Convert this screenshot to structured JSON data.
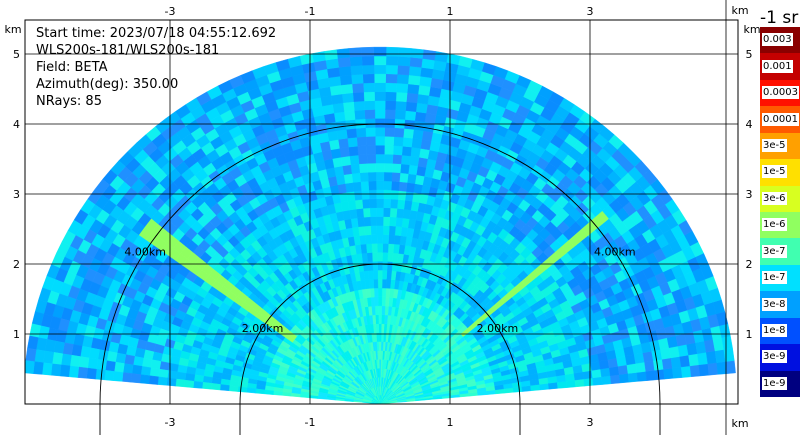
{
  "info": {
    "start_time": "Start time: 2023/07/18 04:55:12.692",
    "instrument": "WLS200s-181/WLS200s-181",
    "field": "Field: BETA",
    "azimuth": "Azimuth(deg): 350.00",
    "nrays": "NRays: 85"
  },
  "colorbar": {
    "title": "-1 sr",
    "labels": [
      "0.003",
      "0.001",
      "0.0003",
      "0.0001",
      "3e-5",
      "1e-5",
      "3e-6",
      "1e-6",
      "3e-7",
      "1e-7",
      "3e-8",
      "1e-8",
      "3e-9",
      "1e-9"
    ],
    "colors": [
      "#8a0000",
      "#c40000",
      "#ff1000",
      "#ff5a00",
      "#ffa000",
      "#ffe000",
      "#d8ff20",
      "#90ff60",
      "#40ffb0",
      "#00e0ff",
      "#00a0ff",
      "#0050ff",
      "#0010e0",
      "#000080"
    ]
  },
  "chart_data": {
    "type": "heatmap",
    "subtype": "range-height-indicator scan",
    "x_unit": "km",
    "y_unit": "km",
    "xlim": [
      -4.3,
      4.3
    ],
    "ylim": [
      0,
      5.8
    ],
    "x_ticks": [
      -3,
      -1,
      1,
      3
    ],
    "x_tick_labels": [
      "-3",
      "-1",
      "1",
      "3"
    ],
    "y_ticks": [
      1,
      2,
      3,
      4,
      5
    ],
    "y_tick_labels": [
      "1",
      "2",
      "3",
      "4",
      "5"
    ],
    "grid": true,
    "max_range_km": 5.1,
    "min_elevation_deg": 5,
    "range_rings": [
      {
        "radius_km": 2.0,
        "label": "2.00km"
      },
      {
        "radius_km": 4.0,
        "label": "4.00km"
      }
    ],
    "dominant_value": "3e-7 to 1e-7",
    "near_field_value": "1e-6 to 3e-7"
  }
}
